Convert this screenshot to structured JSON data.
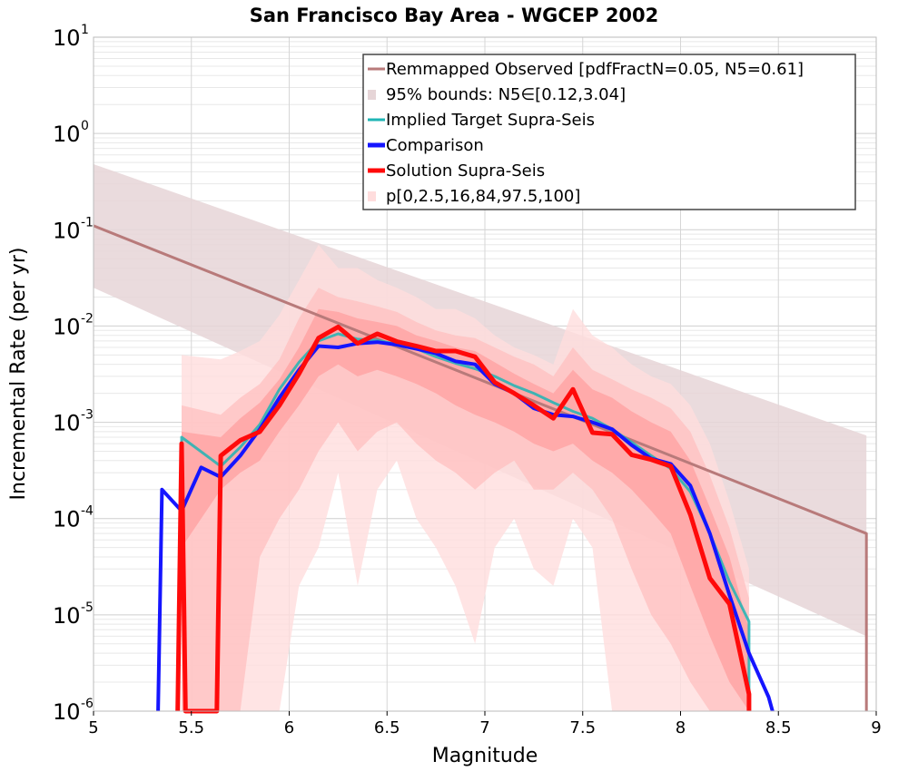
{
  "chart_data": {
    "type": "line",
    "title": "San Francisco Bay Area - WGCEP 2002",
    "xlabel": "Magnitude",
    "ylabel": "Incremental Rate (per yr)",
    "xlim": [
      5,
      9
    ],
    "ylim": [
      1e-06,
      10
    ],
    "yscale": "log",
    "grid": true,
    "legend_position": "top-right",
    "x_ticks": [
      {
        "value": 5,
        "label": "5"
      },
      {
        "value": 5.5,
        "label": "5.5"
      },
      {
        "value": 6,
        "label": "6"
      },
      {
        "value": 6.5,
        "label": "6.5"
      },
      {
        "value": 7,
        "label": "7"
      },
      {
        "value": 7.5,
        "label": "7.5"
      },
      {
        "value": 8,
        "label": "8"
      },
      {
        "value": 8.5,
        "label": "8.5"
      },
      {
        "value": 9,
        "label": "9"
      }
    ],
    "y_ticks": [
      {
        "value": 1e-06,
        "base": "10",
        "exp": "-6"
      },
      {
        "value": 1e-05,
        "base": "10",
        "exp": "-5"
      },
      {
        "value": 0.0001,
        "base": "10",
        "exp": "-4"
      },
      {
        "value": 0.001,
        "base": "10",
        "exp": "-3"
      },
      {
        "value": 0.01,
        "base": "10",
        "exp": "-2"
      },
      {
        "value": 0.1,
        "base": "10",
        "exp": "-1"
      },
      {
        "value": 1,
        "base": "10",
        "exp": "0"
      },
      {
        "value": 10,
        "base": "10",
        "exp": "1"
      }
    ],
    "observed_band": {
      "name": "95% bounds: N5∈[0.12,3.04]",
      "color": "#e6d5d7",
      "points": [
        {
          "x": 5.0,
          "lo": 0.025,
          "hi": 0.48
        },
        {
          "x": 8.95,
          "lo": 6e-06,
          "hi": 0.00073
        }
      ]
    },
    "percentile_bands": {
      "name": "p[0,2.5,16,84,97.5,100]",
      "x": [
        5.45,
        5.65,
        5.75,
        5.85,
        5.95,
        6.05,
        6.15,
        6.25,
        6.35,
        6.45,
        6.55,
        6.65,
        6.75,
        6.85,
        6.95,
        7.05,
        7.15,
        7.25,
        7.35,
        7.45,
        7.55,
        7.65,
        7.75,
        7.85,
        7.95,
        8.05,
        8.15,
        8.25,
        8.35
      ],
      "layers": [
        {
          "level": "p0-p100",
          "color": "#ffdddd",
          "lo": [
            1e-06,
            1e-06,
            1e-06,
            1e-06,
            1e-06,
            2e-05,
            5e-05,
            0.0003,
            2e-05,
            0.0002,
            0.0004,
            0.0001,
            5e-05,
            2e-05,
            5e-06,
            5e-05,
            0.0001,
            3e-05,
            2e-05,
            0.0001,
            5e-05,
            1e-06,
            1e-06,
            1e-06,
            1e-06,
            1e-06,
            1e-06,
            1e-06,
            1e-06
          ],
          "hi": [
            0.005,
            0.0045,
            0.0055,
            0.007,
            0.013,
            0.03,
            0.07,
            0.04,
            0.04,
            0.03,
            0.025,
            0.02,
            0.015,
            0.015,
            0.012,
            0.008,
            0.006,
            0.005,
            0.004,
            0.015,
            0.008,
            0.006,
            0.004,
            0.003,
            0.0025,
            0.0015,
            0.0006,
            0.00015,
            3e-05
          ]
        },
        {
          "level": "p2.5-p97.5",
          "color": "#ffc2c2",
          "lo": [
            1e-06,
            1e-06,
            1e-06,
            4e-05,
            0.0001,
            0.0002,
            0.0005,
            0.001,
            0.0005,
            0.0008,
            0.001,
            0.0006,
            0.0004,
            0.0003,
            0.0002,
            0.0003,
            0.0004,
            0.0002,
            0.0002,
            0.0003,
            0.0002,
            0.0001,
            3e-05,
            1e-05,
            5e-06,
            2e-06,
            1e-06,
            1e-06,
            1e-06
          ],
          "hi": [
            0.0015,
            0.0012,
            0.0018,
            0.0025,
            0.0045,
            0.012,
            0.025,
            0.02,
            0.018,
            0.016,
            0.014,
            0.011,
            0.009,
            0.008,
            0.0075,
            0.006,
            0.0048,
            0.004,
            0.003,
            0.006,
            0.0035,
            0.0028,
            0.0022,
            0.0018,
            0.0014,
            0.0008,
            0.00028,
            8e-05,
            1.5e-05
          ]
        },
        {
          "level": "p16-p84",
          "color": "#ffa3a3",
          "lo": [
            5e-05,
            0.0002,
            0.0003,
            0.0004,
            0.0008,
            0.0015,
            0.003,
            0.004,
            0.003,
            0.0035,
            0.003,
            0.0025,
            0.002,
            0.0015,
            0.0012,
            0.001,
            0.0008,
            0.0006,
            0.0005,
            0.0006,
            0.0004,
            0.0003,
            0.0002,
            0.00012,
            7e-05,
            2e-05,
            6e-06,
            2e-06,
            1e-06
          ],
          "hi": [
            0.0008,
            0.0007,
            0.0011,
            0.0016,
            0.0028,
            0.006,
            0.015,
            0.014,
            0.012,
            0.011,
            0.01,
            0.008,
            0.007,
            0.006,
            0.0055,
            0.0042,
            0.0032,
            0.0025,
            0.002,
            0.0035,
            0.0022,
            0.0018,
            0.0013,
            0.001,
            0.0008,
            0.0004,
            0.00013,
            4e-05,
            7e-06
          ]
        }
      ]
    },
    "series": [
      {
        "name": "Remmapped Observed [pdfFractN=0.05, N5=0.61]",
        "color": "#b87a7a",
        "width": 3,
        "x": [
          5.0,
          8.95,
          8.95
        ],
        "y": [
          0.11,
          7e-05,
          1e-06
        ]
      },
      {
        "name": "Implied Target Supra-Seis",
        "color": "#1fb5b5",
        "width": 3,
        "x": [
          5.45,
          5.45,
          5.65,
          5.75,
          5.85,
          5.95,
          6.05,
          6.15,
          6.25,
          6.35,
          6.45,
          6.55,
          6.65,
          6.75,
          6.85,
          6.95,
          7.05,
          7.15,
          7.25,
          7.35,
          7.45,
          7.55,
          7.65,
          7.75,
          7.85,
          7.95,
          8.05,
          8.15,
          8.25,
          8.35,
          8.35
        ],
        "y": [
          0.0001,
          0.0007,
          0.00035,
          0.00055,
          0.00095,
          0.0022,
          0.0042,
          0.007,
          0.0083,
          0.0073,
          0.0071,
          0.0065,
          0.0058,
          0.0048,
          0.0041,
          0.0036,
          0.003,
          0.0024,
          0.002,
          0.0016,
          0.0013,
          0.0011,
          0.00085,
          0.00062,
          0.00045,
          0.00033,
          0.00019,
          7e-05,
          2.2e-05,
          8.5e-06,
          1e-06
        ]
      },
      {
        "name": "Comparison",
        "color": "#1515ff",
        "width": 4,
        "x": [
          5.33,
          5.35,
          5.45,
          5.55,
          5.65,
          5.75,
          5.85,
          5.95,
          6.05,
          6.15,
          6.25,
          6.35,
          6.45,
          6.55,
          6.65,
          6.75,
          6.85,
          6.95,
          7.05,
          7.15,
          7.25,
          7.35,
          7.45,
          7.55,
          7.65,
          7.75,
          7.85,
          7.95,
          8.05,
          8.15,
          8.25,
          8.35,
          8.45,
          8.47
        ],
        "y": [
          1e-06,
          0.0002,
          0.00012,
          0.00034,
          0.00027,
          0.00045,
          0.00085,
          0.0018,
          0.0035,
          0.0062,
          0.006,
          0.0066,
          0.0068,
          0.0064,
          0.0058,
          0.0052,
          0.0043,
          0.004,
          0.0025,
          0.002,
          0.0014,
          0.0012,
          0.00115,
          0.001,
          0.00085,
          0.00058,
          0.00042,
          0.00037,
          0.00022,
          7e-05,
          1.6e-05,
          4e-06,
          1.4e-06,
          1e-06
        ]
      },
      {
        "name": "Solution Supra-Seis",
        "color": "#ff0a0a",
        "width": 5,
        "x": [
          5.43,
          5.45,
          5.47,
          5.63,
          5.65,
          5.75,
          5.85,
          5.95,
          6.05,
          6.15,
          6.25,
          6.35,
          6.45,
          6.55,
          6.65,
          6.75,
          6.85,
          6.95,
          7.05,
          7.15,
          7.25,
          7.35,
          7.45,
          7.55,
          7.65,
          7.75,
          7.85,
          7.95,
          8.05,
          8.15,
          8.25,
          8.35,
          8.35
        ],
        "y": [
          1e-06,
          0.0006,
          1e-06,
          1e-06,
          0.00045,
          0.00065,
          0.0008,
          0.0015,
          0.0032,
          0.0075,
          0.0098,
          0.0066,
          0.0083,
          0.0069,
          0.0062,
          0.0055,
          0.0055,
          0.0048,
          0.0026,
          0.002,
          0.0015,
          0.0011,
          0.0022,
          0.00078,
          0.00075,
          0.00046,
          0.00041,
          0.00035,
          0.00011,
          2.4e-05,
          1.3e-05,
          1.5e-06,
          1e-06
        ]
      }
    ],
    "legend": [
      {
        "label": "Remmapped Observed [pdfFractN=0.05, N5=0.61]",
        "symbol": "line",
        "color": "#b87a7a"
      },
      {
        "label": "95% bounds: N5∈[0.12,3.04]",
        "symbol": "patch",
        "color": "#e6d5d7"
      },
      {
        "label": "Implied Target Supra-Seis",
        "symbol": "line",
        "color": "#1fb5b5"
      },
      {
        "label": "Comparison",
        "symbol": "line",
        "color": "#1515ff"
      },
      {
        "label": "Solution Supra-Seis",
        "symbol": "line",
        "color": "#ff0a0a"
      },
      {
        "label": "p[0,2.5,16,84,97.5,100]",
        "symbol": "patch",
        "color": "#ffdddd"
      }
    ]
  }
}
